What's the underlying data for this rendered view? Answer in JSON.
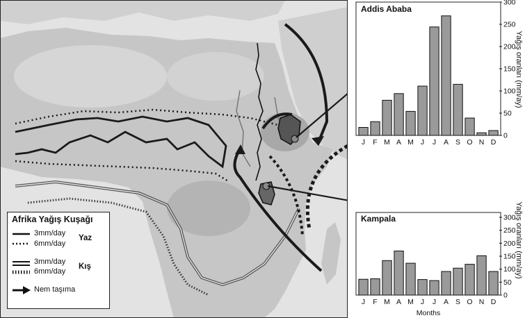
{
  "legend": {
    "title": "Afrika Yağış Kuşağı",
    "summer_3": "3mm/day",
    "summer_6": "6mm/day",
    "summer_label": "Yaz",
    "winter_3": "3mm/day",
    "winter_6": "6mm/day",
    "winter_label": "Kış",
    "moisture": "Nem taşıma"
  },
  "colors": {
    "bar_fill": "#9a9a9a",
    "bar_stroke": "#111111",
    "map_land": "#c8c8c8",
    "map_sea": "#e4e4e4",
    "line": "#1a1a1a"
  },
  "chart_data": [
    {
      "type": "bar",
      "title": "Addis Ababa",
      "categories": [
        "J",
        "F",
        "M",
        "A",
        "M",
        "J",
        "J",
        "A",
        "S",
        "O",
        "N",
        "D"
      ],
      "values": [
        18,
        31,
        79,
        94,
        54,
        111,
        244,
        269,
        115,
        39,
        6,
        11
      ],
      "ylabel": "Yağış oranları (mm/ay)",
      "xlabel": "",
      "ylim": [
        0,
        300
      ],
      "yticks": [
        0,
        50,
        100,
        150,
        200,
        250,
        300
      ],
      "grid": false
    },
    {
      "type": "bar",
      "title": "Kampala",
      "categories": [
        "J",
        "F",
        "M",
        "A",
        "M",
        "J",
        "J",
        "A",
        "S",
        "O",
        "N",
        "D"
      ],
      "values": [
        61,
        63,
        133,
        170,
        123,
        60,
        56,
        91,
        104,
        119,
        152,
        91
      ],
      "ylabel": "Yağış oranları (mm/ay)",
      "xlabel": "Months",
      "ylim": [
        0,
        300
      ],
      "yticks": [
        0,
        50,
        100,
        150,
        200,
        250,
        300
      ],
      "grid": false
    }
  ]
}
